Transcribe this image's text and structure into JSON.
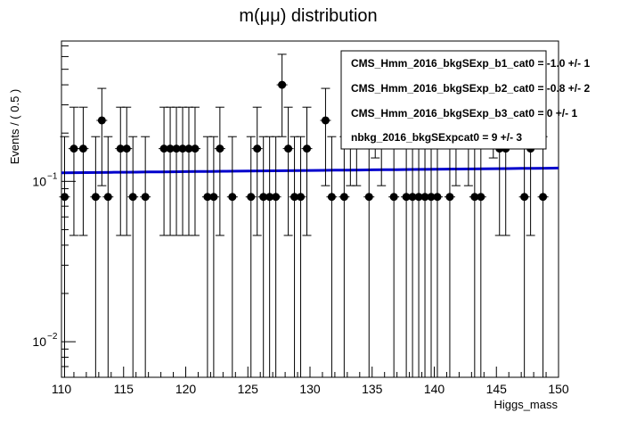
{
  "chart_data": {
    "type": "scatter",
    "title": "m(μμ) distribution",
    "xlabel": "Higgs_mass",
    "ylabel": "Events / ( 0.5 )",
    "xlim": [
      110,
      150
    ],
    "ylim": [
      0.006,
      0.75
    ],
    "yscale": "log",
    "grid": false,
    "legend_position": "top-right",
    "x_ticks": [
      "110",
      "115",
      "120",
      "125",
      "130",
      "135",
      "140",
      "145",
      "150"
    ],
    "y_ticks": [
      {
        "value": 0.1,
        "base": "10",
        "exp": "−1"
      },
      {
        "value": 0.01,
        "base": "10",
        "exp": "−2"
      }
    ],
    "legend": [
      "CMS_Hmm_2016_bkgSExp_b1_cat0 = -1.0 +/- 1",
      "CMS_Hmm_2016_bkgSExp_b2_cat0 = -0.8 +/- 2",
      "CMS_Hmm_2016_bkgSExp_b3_cat0 =  0 +/- 1",
      "nbkg_2016_bkgSExpcat0 =  9 +/- 3"
    ],
    "fit_curve": {
      "color": "#0000cc",
      "x": [
        110,
        150
      ],
      "y": [
        0.113,
        0.121
      ]
    },
    "points": {
      "color": "#000000",
      "x": [
        110.25,
        111.0,
        111.75,
        112.75,
        113.25,
        113.75,
        114.75,
        115.25,
        115.75,
        116.75,
        118.25,
        118.75,
        119.25,
        119.75,
        120.25,
        120.75,
        121.75,
        122.25,
        122.75,
        123.75,
        125.25,
        125.75,
        126.25,
        126.75,
        127.25,
        127.75,
        128.25,
        128.75,
        129.25,
        129.75,
        131.25,
        131.75,
        132.75,
        133.25,
        133.75,
        134.75,
        135.25,
        135.75,
        136.75,
        137.75,
        138.25,
        138.75,
        139.25,
        139.75,
        140.25,
        141.25,
        141.75,
        142.75,
        143.25,
        143.75,
        144.75,
        145.25,
        145.75,
        147.25,
        147.75,
        148.75
      ],
      "y": [
        0.08,
        0.16,
        0.16,
        0.08,
        0.24,
        0.08,
        0.16,
        0.16,
        0.08,
        0.08,
        0.16,
        0.16,
        0.16,
        0.16,
        0.16,
        0.16,
        0.08,
        0.08,
        0.16,
        0.08,
        0.08,
        0.16,
        0.08,
        0.08,
        0.08,
        0.4,
        0.16,
        0.08,
        0.08,
        0.16,
        0.24,
        0.08,
        0.08,
        0.24,
        0.24,
        0.08,
        0.32,
        0.24,
        0.08,
        0.08,
        0.08,
        0.08,
        0.08,
        0.08,
        0.08,
        0.08,
        0.24,
        0.24,
        0.08,
        0.08,
        0.32,
        0.16,
        0.16,
        0.08,
        0.16,
        0.08
      ],
      "y_low": [
        0.0055,
        0.046,
        0.046,
        0.0055,
        0.094,
        0.0055,
        0.046,
        0.046,
        0.0055,
        0.0055,
        0.046,
        0.046,
        0.046,
        0.046,
        0.046,
        0.046,
        0.0055,
        0.0055,
        0.046,
        0.0055,
        0.0055,
        0.046,
        0.0055,
        0.0055,
        0.0055,
        0.19,
        0.046,
        0.0055,
        0.0055,
        0.046,
        0.094,
        0.0055,
        0.0055,
        0.094,
        0.094,
        0.0055,
        0.14,
        0.094,
        0.0055,
        0.0055,
        0.0055,
        0.0055,
        0.0055,
        0.0055,
        0.0055,
        0.0055,
        0.094,
        0.094,
        0.0055,
        0.0055,
        0.14,
        0.046,
        0.046,
        0.0055,
        0.046,
        0.0055
      ],
      "y_high": [
        0.19,
        0.29,
        0.29,
        0.19,
        0.38,
        0.19,
        0.29,
        0.29,
        0.19,
        0.19,
        0.29,
        0.29,
        0.29,
        0.29,
        0.29,
        0.29,
        0.19,
        0.19,
        0.29,
        0.19,
        0.19,
        0.29,
        0.19,
        0.19,
        0.19,
        0.62,
        0.29,
        0.19,
        0.19,
        0.29,
        0.38,
        0.19,
        0.19,
        0.38,
        0.38,
        0.19,
        0.52,
        0.38,
        0.19,
        0.19,
        0.19,
        0.19,
        0.19,
        0.19,
        0.19,
        0.19,
        0.38,
        0.38,
        0.19,
        0.19,
        0.52,
        0.29,
        0.29,
        0.19,
        0.29,
        0.19
      ]
    }
  }
}
